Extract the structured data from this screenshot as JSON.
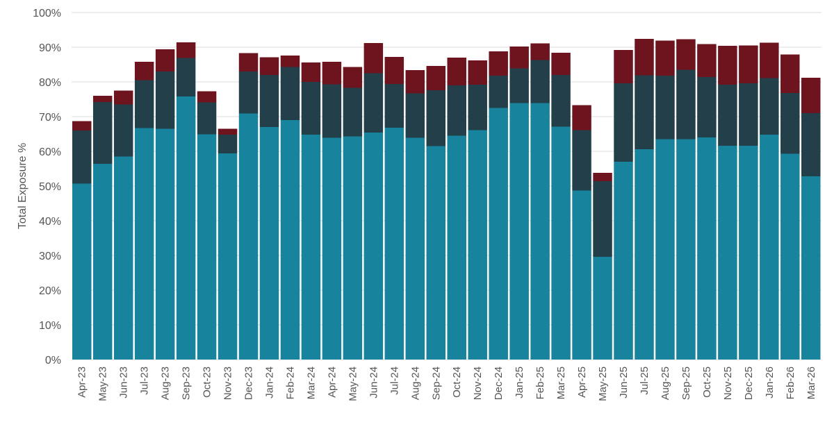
{
  "chart_data": {
    "type": "bar",
    "stacked": true,
    "title": "",
    "xlabel": "",
    "ylabel": "Total Exposure %",
    "ylim": [
      0,
      100
    ],
    "yticks": [
      "0%",
      "10%",
      "20%",
      "30%",
      "40%",
      "50%",
      "60%",
      "70%",
      "80%",
      "90%",
      "100%"
    ],
    "grid": true,
    "legend": "none",
    "categories": [
      "Apr-23",
      "May-23",
      "Jun-23",
      "Jul-23",
      "Aug-23",
      "Sep-23",
      "Oct-23",
      "Nov-23",
      "Dec-23",
      "Jan-24",
      "Feb-24",
      "Mar-24",
      "Apr-24",
      "May-24",
      "Jun-24",
      "Jul-24",
      "Aug-24",
      "Sep-24",
      "Oct-24",
      "Nov-24",
      "Dec-24",
      "Jan-25",
      "Feb-25",
      "Mar-25",
      "Apr-25",
      "May-25",
      "Jun-25",
      "Jul-25",
      "Aug-25",
      "Sep-25",
      "Oct-25",
      "Nov-25",
      "Dec-25",
      "Jan-26",
      "Feb-26",
      "Mar-26"
    ],
    "series": [
      {
        "color": "#17839c",
        "values": [
          50.7,
          56.4,
          58.5,
          66.7,
          66.5,
          75.8,
          64.9,
          59.4,
          70.9,
          67.0,
          69.0,
          64.8,
          63.9,
          64.3,
          65.4,
          66.8,
          63.9,
          61.5,
          64.5,
          66.1,
          72.5,
          73.9,
          73.9,
          67.1,
          48.7,
          29.6,
          57.0,
          60.6,
          63.5,
          63.5,
          64.0,
          61.6,
          61.6,
          64.8,
          59.3,
          52.8
        ]
      },
      {
        "color": "#233f4a",
        "values": [
          15.3,
          17.8,
          15.0,
          13.8,
          16.5,
          11.1,
          9.2,
          5.4,
          12.1,
          15.0,
          15.3,
          15.2,
          15.4,
          14.0,
          17.1,
          12.6,
          12.8,
          16.1,
          14.5,
          13.1,
          9.3,
          10.0,
          12.4,
          14.9,
          17.4,
          21.8,
          22.6,
          21.3,
          18.3,
          20.0,
          17.4,
          17.6,
          18.0,
          16.3,
          17.5,
          18.2
        ]
      },
      {
        "color": "#6e141e",
        "values": [
          2.7,
          1.8,
          4.0,
          5.3,
          6.4,
          4.5,
          3.2,
          1.7,
          5.3,
          5.1,
          3.3,
          5.6,
          6.5,
          6.0,
          8.7,
          7.8,
          6.7,
          7.0,
          8.0,
          7.0,
          7.0,
          6.3,
          4.8,
          6.4,
          7.2,
          2.4,
          9.6,
          10.5,
          10.1,
          8.8,
          9.5,
          11.2,
          10.9,
          10.2,
          11.1,
          10.2
        ]
      }
    ]
  }
}
